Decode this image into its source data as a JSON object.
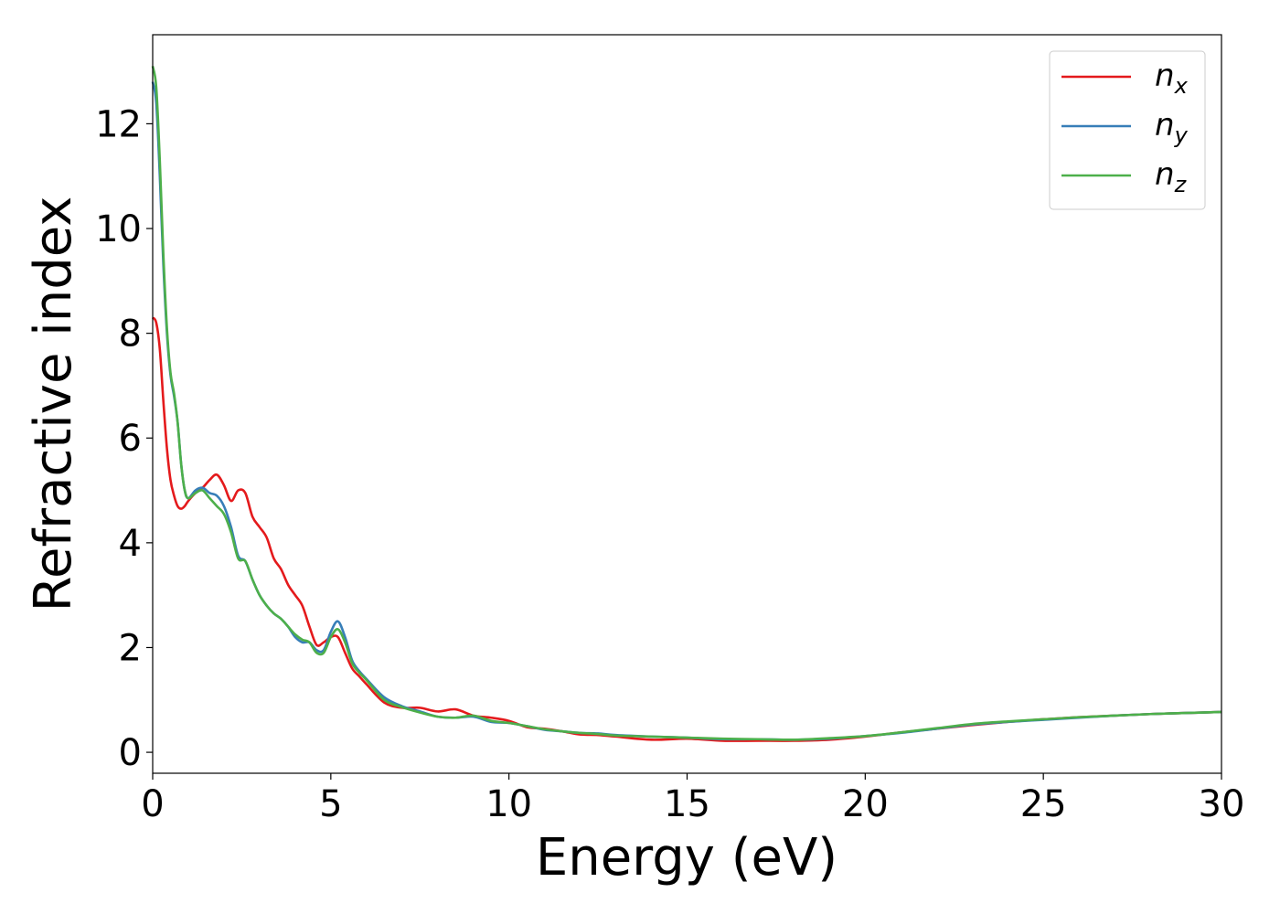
{
  "chart_data": {
    "type": "line",
    "title": "",
    "xlabel": "Energy (eV)",
    "ylabel": "Refractive index",
    "xlim": [
      0,
      30
    ],
    "ylim": [
      -0.4,
      13.7
    ],
    "xticks": [
      0,
      5,
      10,
      15,
      20,
      25,
      30
    ],
    "yticks": [
      0,
      2,
      4,
      6,
      8,
      10,
      12
    ],
    "xtick_labels": [
      "0",
      "5",
      "10",
      "15",
      "20",
      "25",
      "30"
    ],
    "ytick_labels": [
      "0",
      "2",
      "4",
      "6",
      "8",
      "10",
      "12"
    ],
    "grid": false,
    "legend_position": "top-right",
    "series": [
      {
        "name": "n",
        "subscript": "x",
        "color": "#e41a1c",
        "x": [
          0,
          0.1,
          0.2,
          0.3,
          0.4,
          0.5,
          0.6,
          0.7,
          0.8,
          0.9,
          1.0,
          1.2,
          1.4,
          1.6,
          1.8,
          2.0,
          2.2,
          2.4,
          2.6,
          2.8,
          3.0,
          3.2,
          3.4,
          3.6,
          3.8,
          4.0,
          4.2,
          4.4,
          4.6,
          4.8,
          5.0,
          5.2,
          5.4,
          5.6,
          5.8,
          6.0,
          6.5,
          7.0,
          7.5,
          8.0,
          8.5,
          9.0,
          9.5,
          10.0,
          10.5,
          11.0,
          11.5,
          12.0,
          12.5,
          13.0,
          14.0,
          15.0,
          16.0,
          17.0,
          18.0,
          19.0,
          20.0,
          21.0,
          22.0,
          23.0,
          24.0,
          25.0,
          26.0,
          27.0,
          28.0,
          29.0,
          30.0
        ],
        "y": [
          8.3,
          8.2,
          7.7,
          6.7,
          5.8,
          5.2,
          4.9,
          4.7,
          4.65,
          4.7,
          4.8,
          4.95,
          5.05,
          5.2,
          5.3,
          5.1,
          4.8,
          5.0,
          4.95,
          4.5,
          4.3,
          4.1,
          3.7,
          3.5,
          3.2,
          3.0,
          2.8,
          2.4,
          2.05,
          2.1,
          2.2,
          2.2,
          1.9,
          1.6,
          1.45,
          1.3,
          0.95,
          0.85,
          0.85,
          0.78,
          0.82,
          0.7,
          0.66,
          0.6,
          0.48,
          0.45,
          0.4,
          0.34,
          0.33,
          0.3,
          0.24,
          0.26,
          0.22,
          0.22,
          0.22,
          0.24,
          0.3,
          0.38,
          0.45,
          0.52,
          0.58,
          0.63,
          0.67,
          0.7,
          0.73,
          0.75,
          0.77
        ]
      },
      {
        "name": "n",
        "subscript": "y",
        "color": "#377eb8",
        "x": [
          0,
          0.1,
          0.2,
          0.3,
          0.4,
          0.5,
          0.6,
          0.7,
          0.8,
          0.9,
          1.0,
          1.2,
          1.4,
          1.6,
          1.8,
          2.0,
          2.2,
          2.4,
          2.6,
          2.8,
          3.0,
          3.2,
          3.4,
          3.6,
          3.8,
          4.0,
          4.2,
          4.4,
          4.6,
          4.8,
          5.0,
          5.2,
          5.4,
          5.6,
          5.8,
          6.0,
          6.5,
          7.0,
          7.5,
          8.0,
          8.5,
          9.0,
          9.5,
          10.0,
          10.5,
          11.0,
          11.5,
          12.0,
          12.5,
          13.0,
          14.0,
          15.0,
          16.0,
          17.0,
          18.0,
          19.0,
          20.0,
          21.0,
          22.0,
          23.0,
          24.0,
          25.0,
          26.0,
          27.0,
          28.0,
          29.0,
          30.0
        ],
        "y": [
          12.8,
          12.4,
          11.0,
          9.3,
          8.0,
          7.2,
          6.8,
          6.3,
          5.5,
          5.0,
          4.85,
          5.0,
          5.05,
          4.95,
          4.9,
          4.7,
          4.3,
          3.75,
          3.65,
          3.3,
          3.0,
          2.8,
          2.65,
          2.55,
          2.4,
          2.2,
          2.1,
          2.1,
          1.95,
          1.95,
          2.3,
          2.5,
          2.2,
          1.75,
          1.55,
          1.4,
          1.05,
          0.88,
          0.78,
          0.68,
          0.66,
          0.68,
          0.58,
          0.56,
          0.5,
          0.43,
          0.4,
          0.37,
          0.36,
          0.33,
          0.3,
          0.28,
          0.25,
          0.25,
          0.24,
          0.26,
          0.31,
          0.37,
          0.45,
          0.53,
          0.58,
          0.62,
          0.66,
          0.7,
          0.73,
          0.75,
          0.77
        ]
      },
      {
        "name": "n",
        "subscript": "z",
        "color": "#4daf4a",
        "x": [
          0,
          0.1,
          0.2,
          0.3,
          0.4,
          0.5,
          0.6,
          0.7,
          0.8,
          0.9,
          1.0,
          1.2,
          1.4,
          1.6,
          1.8,
          2.0,
          2.2,
          2.4,
          2.6,
          2.8,
          3.0,
          3.2,
          3.4,
          3.6,
          3.8,
          4.0,
          4.2,
          4.4,
          4.6,
          4.8,
          5.0,
          5.2,
          5.4,
          5.6,
          5.8,
          6.0,
          6.5,
          7.0,
          7.5,
          8.0,
          8.5,
          9.0,
          9.5,
          10.0,
          10.5,
          11.0,
          11.5,
          12.0,
          12.5,
          13.0,
          14.0,
          15.0,
          16.0,
          17.0,
          18.0,
          19.0,
          20.0,
          21.0,
          22.0,
          23.0,
          24.0,
          25.0,
          26.0,
          27.0,
          28.0,
          29.0,
          30.0
        ],
        "y": [
          13.1,
          12.7,
          11.3,
          9.5,
          8.1,
          7.25,
          6.85,
          6.3,
          5.5,
          5.0,
          4.85,
          4.95,
          5.0,
          4.85,
          4.7,
          4.55,
          4.2,
          3.7,
          3.65,
          3.3,
          3.0,
          2.8,
          2.65,
          2.55,
          2.4,
          2.25,
          2.15,
          2.1,
          1.9,
          1.9,
          2.2,
          2.35,
          2.1,
          1.7,
          1.52,
          1.38,
          1.0,
          0.86,
          0.76,
          0.68,
          0.66,
          0.7,
          0.6,
          0.56,
          0.5,
          0.44,
          0.4,
          0.37,
          0.35,
          0.32,
          0.3,
          0.28,
          0.26,
          0.25,
          0.24,
          0.27,
          0.31,
          0.38,
          0.46,
          0.54,
          0.59,
          0.63,
          0.67,
          0.7,
          0.73,
          0.75,
          0.77
        ]
      }
    ]
  }
}
